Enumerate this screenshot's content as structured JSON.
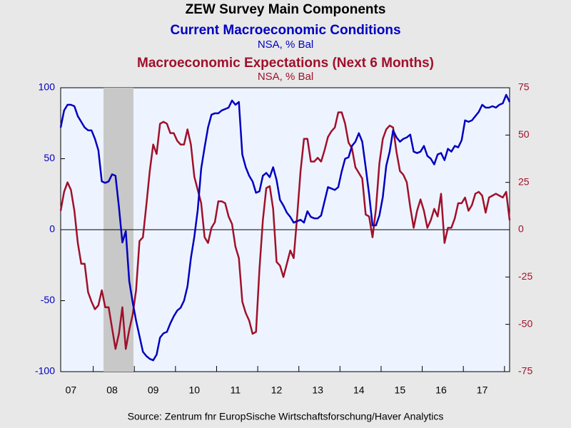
{
  "chart_data": {
    "type": "line",
    "title": "ZEW Survey Main Components",
    "subtitles": [
      {
        "text": "Current Macroeconomic Conditions",
        "color": "#0000c0"
      },
      {
        "text": "NSA, % Bal",
        "color": "#0000c0"
      },
      {
        "text": "Macroeconomic Expectations (Next 6 Months)",
        "color": "#a0102a"
      },
      {
        "text": "NSA, % Bal",
        "color": "#a0102a"
      }
    ],
    "source": "Source:  Zentrum fnr EuropSische Wirtschaftsforschung/Haver Analytics",
    "categories": [
      null,
      null,
      null,
      "07",
      null,
      null,
      null,
      null,
      null,
      null,
      null,
      null,
      null,
      null,
      null,
      "08",
      null,
      null,
      null,
      null,
      null,
      null,
      null,
      null,
      null,
      null,
      null,
      "09",
      null,
      null,
      null,
      null,
      null,
      null,
      null,
      null,
      null,
      null,
      null,
      "10",
      null,
      null,
      null,
      null,
      null,
      null,
      null,
      null,
      null,
      null,
      null,
      "11",
      null,
      null,
      null,
      null,
      null,
      null,
      null,
      null,
      null,
      null,
      null,
      "12",
      null,
      null,
      null,
      null,
      null,
      null,
      null,
      null,
      null,
      null,
      null,
      "13",
      null,
      null,
      null,
      null,
      null,
      null,
      null,
      null,
      null,
      null,
      null,
      "14",
      null,
      null,
      null,
      null,
      null,
      null,
      null,
      null,
      null,
      null,
      null,
      "15",
      null,
      null,
      null,
      null,
      null,
      null,
      null,
      null,
      null,
      null,
      null,
      "16",
      null,
      null,
      null,
      null,
      null,
      null,
      null,
      null,
      null,
      null,
      null,
      "17",
      null,
      null,
      null,
      null,
      null,
      null,
      null,
      null
    ],
    "series": [
      {
        "name": "Current Macroeconomic Conditions",
        "color": "#0000c0",
        "axis": "y",
        "values": [
          72,
          84,
          88,
          88,
          87,
          80,
          76,
          72,
          70,
          70,
          64,
          56,
          34,
          33,
          34,
          39,
          38,
          16,
          -9,
          -1,
          -36,
          -51,
          -64,
          -75,
          -86,
          -89,
          -91,
          -92,
          -88,
          -76,
          -73,
          -72,
          -66,
          -61,
          -57,
          -55,
          -50,
          -40,
          -20,
          -5,
          14,
          43,
          58,
          72,
          81,
          82,
          82,
          84,
          85,
          86,
          91,
          88,
          90,
          53,
          44,
          38,
          34,
          26,
          27,
          38,
          40,
          37,
          44,
          35,
          21,
          17,
          12,
          9,
          5,
          6,
          7,
          5,
          13,
          9,
          8,
          8,
          10,
          20,
          30,
          29,
          28,
          30,
          41,
          50,
          51,
          59,
          62,
          68,
          62,
          44,
          25,
          3,
          3,
          10,
          23,
          45,
          55,
          70,
          65,
          62,
          64,
          65,
          67,
          55,
          54,
          55,
          59,
          52,
          50,
          46,
          53,
          54,
          49,
          57,
          55,
          59,
          58,
          63,
          77,
          76,
          77,
          80,
          83,
          88,
          86,
          86,
          87,
          86,
          88,
          89,
          95,
          90
        ]
      },
      {
        "name": "Macroeconomic Expectations (Next 6 Months)",
        "color": "#a0102a",
        "axis": "y2",
        "values": [
          10,
          20,
          25,
          21,
          10,
          -7,
          -18,
          -18,
          -33,
          -38,
          -42,
          -40,
          -32,
          -41,
          -41,
          -52,
          -63,
          -55,
          -41,
          -63,
          -53,
          -45,
          -32,
          -6,
          -4,
          13,
          31,
          45,
          40,
          56,
          57,
          56,
          51,
          51,
          47,
          45,
          45,
          53,
          45,
          28,
          21,
          14,
          -4,
          -7,
          1,
          4,
          15,
          15,
          14,
          7,
          3,
          -9,
          -15,
          -38,
          -44,
          -48,
          -55,
          -54,
          -21,
          5,
          22,
          23,
          11,
          -17,
          -19,
          -25,
          -18,
          -11,
          -15,
          7,
          31,
          48,
          48,
          36,
          36,
          38,
          36,
          42,
          49,
          52,
          54,
          62,
          62,
          56,
          46,
          43,
          33,
          30,
          27,
          8,
          7,
          -4,
          11,
          35,
          48,
          53,
          55,
          54,
          41,
          31,
          29,
          25,
          12,
          1,
          10,
          16,
          10,
          1,
          5,
          11,
          7,
          19,
          -7,
          1,
          1,
          6,
          14,
          14,
          17,
          10,
          13,
          19,
          20,
          18,
          9,
          17,
          18,
          19,
          18,
          17,
          20,
          5
        ]
      }
    ],
    "ylim": [
      -100,
      100
    ],
    "yticks": [
      100,
      50,
      0,
      -50,
      -100
    ],
    "y2lim": [
      -75,
      75
    ],
    "y2ticks": [
      75,
      50,
      25,
      0,
      -25,
      -50,
      -75
    ]
  }
}
